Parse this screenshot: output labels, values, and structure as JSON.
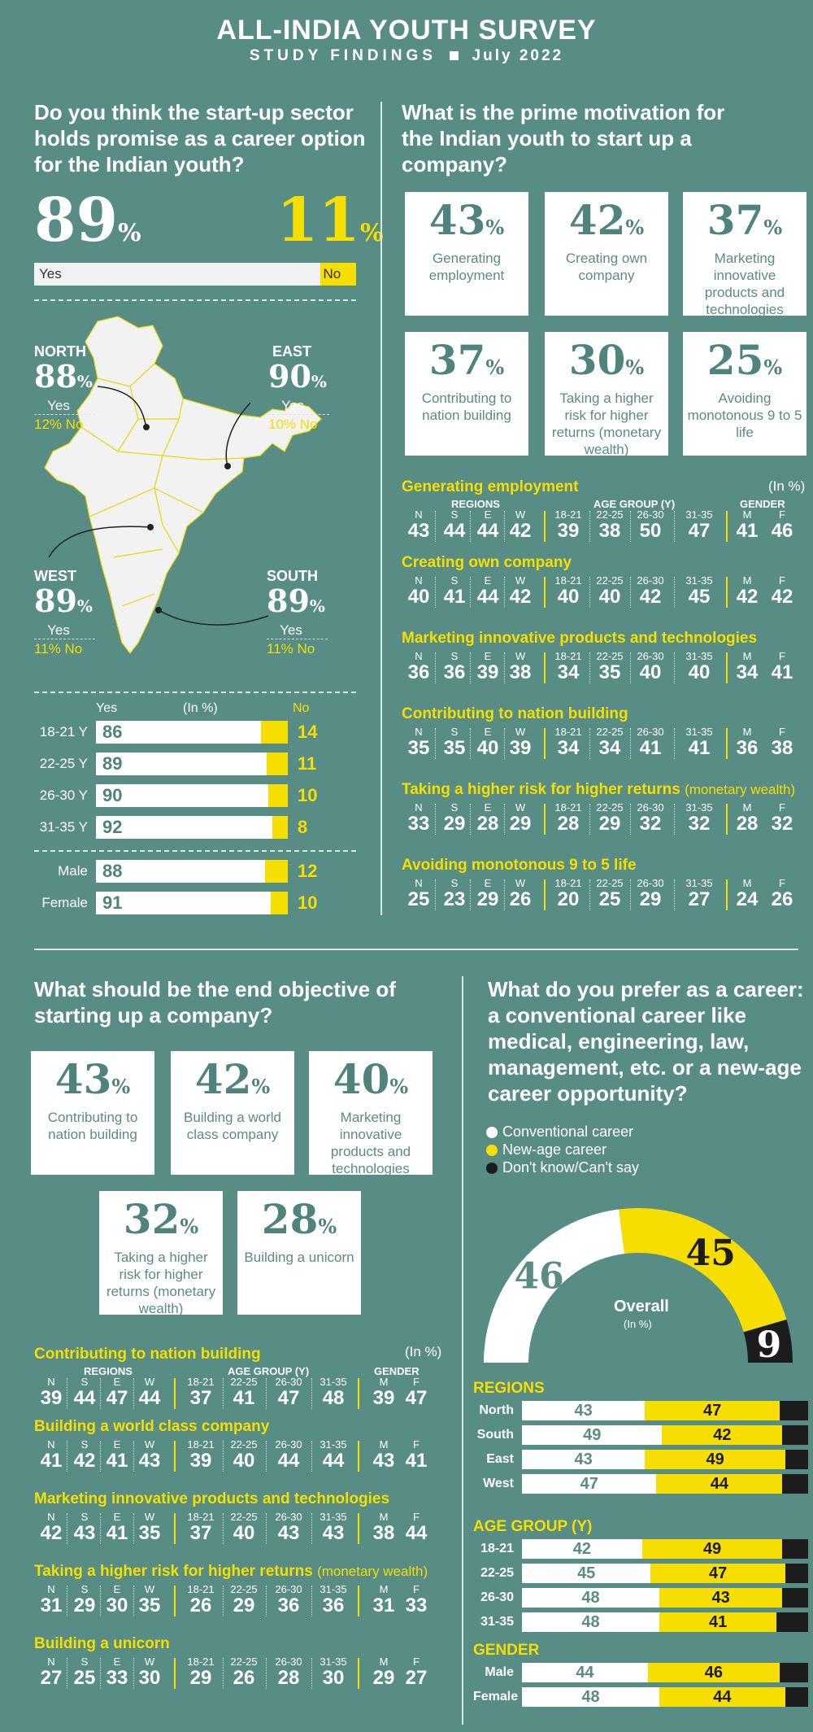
{
  "header": {
    "title": "ALL-INDIA YOUTH SURVEY",
    "subtitle_a": "STUDY FINDINGS",
    "subtitle_b": "July 2022"
  },
  "q1": {
    "question": "Do you think the start-up sector holds promise as a career option for the Indian youth?",
    "yes_pct": 89,
    "no_pct": 11,
    "yes_label": "Yes",
    "no_label": "No",
    "regions": [
      {
        "name": "NORTH",
        "yes": 88,
        "no": 12
      },
      {
        "name": "EAST",
        "yes": 90,
        "no": 10
      },
      {
        "name": "WEST",
        "yes": 89,
        "no": 11
      },
      {
        "name": "SOUTH",
        "yes": 89,
        "no": 11
      }
    ],
    "bars_header": {
      "yes": "Yes",
      "unit": "(In %)",
      "no": "No"
    },
    "age_bars": [
      {
        "label": "18-21 Y",
        "yes": 86,
        "no": 14
      },
      {
        "label": "22-25 Y",
        "yes": 89,
        "no": 11
      },
      {
        "label": "26-30 Y",
        "yes": 90,
        "no": 10
      },
      {
        "label": "31-35 Y",
        "yes": 92,
        "no": 8
      }
    ],
    "gender_bars": [
      {
        "label": "Male",
        "yes": 88,
        "no": 12
      },
      {
        "label": "Female",
        "yes": 91,
        "no": 10
      }
    ]
  },
  "q2": {
    "question": "What is the prime motivation for the Indian youth to start up a company?",
    "cards": [
      {
        "pct": 43,
        "label": "Generating employment"
      },
      {
        "pct": 42,
        "label": "Creating own company"
      },
      {
        "pct": 37,
        "label": "Marketing innovative products and technologies"
      },
      {
        "pct": 37,
        "label": "Contributing to nation building"
      },
      {
        "pct": 30,
        "label": "Taking a higher risk for higher returns (monetary wealth)"
      },
      {
        "pct": 25,
        "label": "Avoiding monotonous 9 to 5 life"
      }
    ],
    "unit": "(In %)",
    "group_headers": {
      "regions": "REGIONS",
      "age": "AGE GROUP (Y)",
      "gender": "GENDER"
    },
    "keys": [
      "N",
      "S",
      "E",
      "W",
      "18-21",
      "22-25",
      "26-30",
      "31-35",
      "M",
      "F"
    ],
    "rows": [
      {
        "title": "Generating employment",
        "suffix": "",
        "values": [
          43,
          44,
          44,
          42,
          39,
          38,
          50,
          47,
          41,
          46
        ]
      },
      {
        "title": "Creating own company",
        "suffix": "",
        "values": [
          40,
          41,
          44,
          42,
          40,
          40,
          42,
          45,
          42,
          42
        ]
      },
      {
        "title": "Marketing innovative products and technologies",
        "suffix": "",
        "values": [
          36,
          36,
          39,
          38,
          34,
          35,
          40,
          40,
          34,
          41
        ]
      },
      {
        "title": "Contributing to nation building",
        "suffix": "",
        "values": [
          35,
          35,
          40,
          39,
          34,
          34,
          41,
          41,
          36,
          38
        ]
      },
      {
        "title": "Taking a higher risk for higher returns",
        "suffix": "(monetary wealth)",
        "values": [
          33,
          29,
          28,
          29,
          28,
          29,
          32,
          32,
          28,
          32
        ]
      },
      {
        "title": "Avoiding monotonous 9 to 5 life",
        "suffix": "",
        "values": [
          25,
          23,
          29,
          26,
          20,
          25,
          29,
          27,
          24,
          26
        ]
      }
    ]
  },
  "q3": {
    "question": "What should be the end objective of starting up a company?",
    "cards": [
      {
        "pct": 43,
        "label": "Contributing to nation building"
      },
      {
        "pct": 42,
        "label": "Building a world class company"
      },
      {
        "pct": 40,
        "label": "Marketing innovative products and technologies"
      },
      {
        "pct": 32,
        "label": "Taking a higher risk for higher returns (monetary wealth)"
      },
      {
        "pct": 28,
        "label": "Building a unicorn"
      }
    ],
    "unit": "(In %)",
    "group_headers": {
      "regions": "REGIONS",
      "age": "AGE GROUP (Y)",
      "gender": "GENDER"
    },
    "keys": [
      "N",
      "S",
      "E",
      "W",
      "18-21",
      "22-25",
      "26-30",
      "31-35",
      "M",
      "F"
    ],
    "rows": [
      {
        "title": "Contributing to nation building",
        "suffix": "",
        "values": [
          39,
          44,
          47,
          44,
          37,
          41,
          47,
          48,
          39,
          47
        ]
      },
      {
        "title": "Building a world class company",
        "suffix": "",
        "values": [
          41,
          42,
          41,
          43,
          39,
          40,
          44,
          44,
          43,
          41
        ]
      },
      {
        "title": "Marketing innovative products and technologies",
        "suffix": "",
        "values": [
          42,
          43,
          41,
          35,
          37,
          40,
          43,
          43,
          38,
          44
        ]
      },
      {
        "title": "Taking a higher risk for higher returns",
        "suffix": "(monetary wealth)",
        "values": [
          31,
          29,
          30,
          35,
          26,
          29,
          36,
          36,
          31,
          33
        ]
      },
      {
        "title": "Building a unicorn",
        "suffix": "",
        "values": [
          27,
          25,
          33,
          30,
          29,
          26,
          28,
          30,
          29,
          27
        ]
      }
    ]
  },
  "q4": {
    "question": "What do you prefer as a career: a conventional career like medical, engineering, law, management, etc. or a new-age career opportunity?",
    "legend": [
      "Conventional career",
      "New-age career",
      "Don't know/Can't say"
    ],
    "colors": {
      "conventional": "#ffffff",
      "newage": "#f5de00",
      "dontknow": "#1c1c1c"
    },
    "overall": {
      "label": "Overall",
      "unit": "(In %)",
      "values": [
        46,
        45,
        9
      ]
    },
    "groups": [
      {
        "title": "REGIONS",
        "rows": [
          {
            "label": "North",
            "values": [
              43,
              47,
              10
            ]
          },
          {
            "label": "South",
            "values": [
              49,
              42,
              9
            ]
          },
          {
            "label": "East",
            "values": [
              43,
              49,
              8
            ]
          },
          {
            "label": "West",
            "values": [
              47,
              44,
              9
            ]
          }
        ]
      },
      {
        "title": "AGE GROUP (Y)",
        "rows": [
          {
            "label": "18-21",
            "values": [
              42,
              49,
              9
            ]
          },
          {
            "label": "22-25",
            "values": [
              45,
              47,
              8
            ]
          },
          {
            "label": "26-30",
            "values": [
              48,
              43,
              9
            ]
          },
          {
            "label": "31-35",
            "values": [
              48,
              41,
              11
            ]
          }
        ]
      },
      {
        "title": "GENDER",
        "rows": [
          {
            "label": "Male",
            "values": [
              44,
              46,
              10
            ]
          },
          {
            "label": "Female",
            "values": [
              48,
              44,
              8
            ]
          }
        ]
      }
    ]
  },
  "chart_data": [
    {
      "type": "bar",
      "title": "Do you think the start-up sector holds promise as a career option for the Indian youth?",
      "categories": [
        "Overall",
        "North",
        "East",
        "West",
        "South",
        "18-21 Y",
        "22-25 Y",
        "26-30 Y",
        "31-35 Y",
        "Male",
        "Female"
      ],
      "series": [
        {
          "name": "Yes",
          "values": [
            89,
            88,
            90,
            89,
            89,
            86,
            89,
            90,
            92,
            88,
            91
          ]
        },
        {
          "name": "No",
          "values": [
            11,
            12,
            10,
            11,
            11,
            14,
            11,
            10,
            8,
            12,
            10
          ]
        }
      ]
    },
    {
      "type": "table",
      "title": "What is the prime motivation for the Indian youth to start up a company?"
    },
    {
      "type": "table",
      "title": "What should be the end objective of starting up a company?"
    },
    {
      "type": "bar",
      "title": "What do you prefer as a career",
      "categories": [
        "Overall",
        "North",
        "South",
        "East",
        "West",
        "18-21",
        "22-25",
        "26-30",
        "31-35",
        "Male",
        "Female"
      ],
      "series": [
        {
          "name": "Conventional career",
          "values": [
            46,
            43,
            49,
            43,
            47,
            42,
            45,
            48,
            48,
            44,
            48
          ]
        },
        {
          "name": "New-age career",
          "values": [
            45,
            47,
            42,
            49,
            44,
            49,
            47,
            43,
            41,
            46,
            44
          ]
        },
        {
          "name": "Don't know/Can't say",
          "values": [
            9,
            10,
            9,
            8,
            9,
            9,
            8,
            9,
            11,
            10,
            8
          ]
        }
      ]
    }
  ]
}
